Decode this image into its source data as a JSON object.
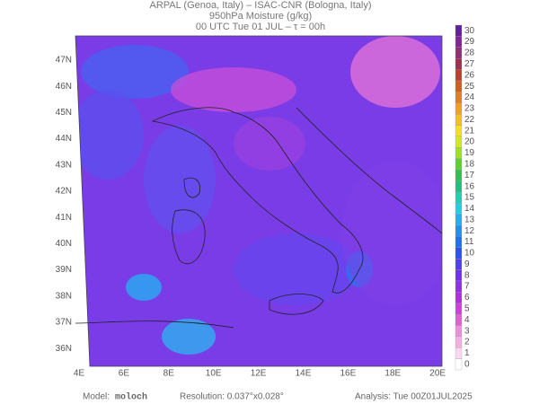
{
  "header": {
    "line1": "ARPAL (Genoa, Italy)  –  ISAC-CNR (Bologna, Italy)",
    "line2": "950hPa Moisture (g/kg)",
    "line3": "00 UTC Tue 01 JUL  –  τ = 00h"
  },
  "map": {
    "lat_labels": [
      "47N",
      "46N",
      "45N",
      "44N",
      "43N",
      "42N",
      "41N",
      "40N",
      "39N",
      "38N",
      "37N",
      "36N"
    ],
    "lon_labels": [
      "4E",
      "6E",
      "8E",
      "10E",
      "12E",
      "14E",
      "16E",
      "18E",
      "20E"
    ]
  },
  "colorbar": {
    "levels": [
      0,
      1,
      2,
      3,
      4,
      5,
      6,
      7,
      8,
      9,
      10,
      11,
      12,
      13,
      14,
      15,
      16,
      17,
      18,
      19,
      20,
      21,
      22,
      23,
      24,
      25,
      26,
      27,
      28,
      29,
      30
    ],
    "colors": [
      "#ffffff",
      "#f8d8f0",
      "#f0b0e0",
      "#e890d8",
      "#e060d0",
      "#d040d8",
      "#b030e0",
      "#9030e8",
      "#7030f0",
      "#5040f0",
      "#3050f0",
      "#2070f0",
      "#2090f0",
      "#20b0f0",
      "#20d0e0",
      "#20d0b0",
      "#20c080",
      "#30c050",
      "#60d030",
      "#a0e020",
      "#d0e820",
      "#f0e020",
      "#f0c020",
      "#f0a020",
      "#e08020",
      "#d06020",
      "#c04030",
      "#a03050",
      "#903070",
      "#802890",
      "#6020a0"
    ]
  },
  "footer": {
    "model_label": "Model:",
    "model": "moloch",
    "resolution": "Resolution: 0.037°x0.028°",
    "analysis": "Analysis: Tue 00Z01JUL2025"
  }
}
